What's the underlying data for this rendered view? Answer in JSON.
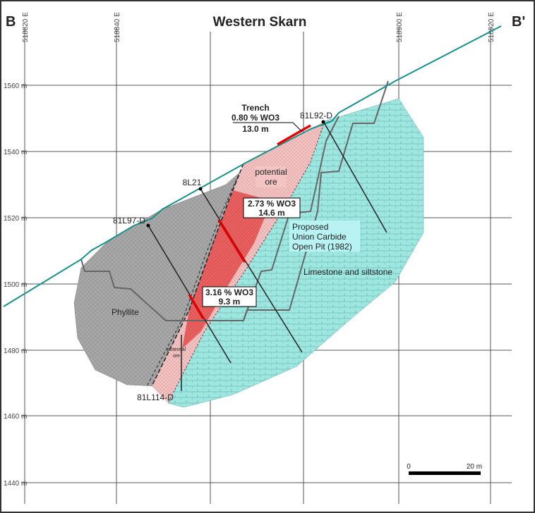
{
  "header": {
    "title": "Western Skarn",
    "left_label": "B",
    "right_label": "B'"
  },
  "eastings": [
    "518820 E",
    "518840 E",
    "518900 E",
    "518920 E"
  ],
  "elevations": [
    "1560 m",
    "1540 m",
    "1520 m",
    "1500 m",
    "1480 m",
    "1460 m",
    "1440 m"
  ],
  "trench": {
    "label": "Trench",
    "grade": "0.80 % WO3",
    "length": "13.0 m"
  },
  "intercepts": [
    {
      "grade": "2.73 % WO3",
      "length": "14.6 m"
    },
    {
      "grade": "3.16 % WO3",
      "length": "9.3 m"
    }
  ],
  "drill_holes": [
    "81L92-D",
    "8L21",
    "81L97-D",
    "81L114-D"
  ],
  "units": {
    "potential_ore": [
      "potential",
      "ore"
    ],
    "potential_ore_small": [
      "potential",
      "ore"
    ],
    "open_pit": [
      "Proposed",
      "Union Carbide",
      "Open Pit (1982)"
    ],
    "limestone": "Limestone and siltstone",
    "phyllite": "Phyllite"
  },
  "scale": {
    "start": "0",
    "end": "20 m"
  }
}
